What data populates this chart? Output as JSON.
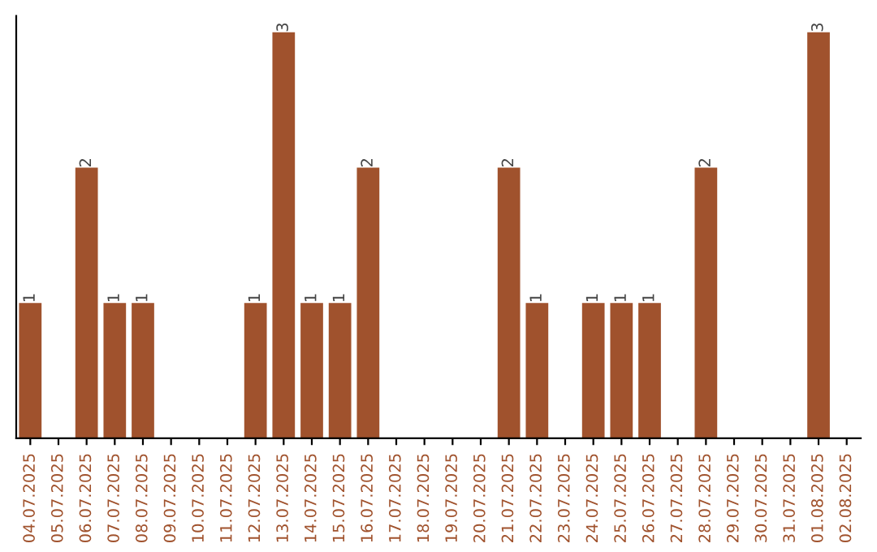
{
  "chart_data": {
    "type": "bar",
    "categories": [
      "04.07.2025",
      "05.07.2025",
      "06.07.2025",
      "07.07.2025",
      "08.07.2025",
      "09.07.2025",
      "10.07.2025",
      "11.07.2025",
      "12.07.2025",
      "13.07.2025",
      "14.07.2025",
      "15.07.2025",
      "16.07.2025",
      "17.07.2025",
      "18.07.2025",
      "19.07.2025",
      "20.07.2025",
      "21.07.2025",
      "22.07.2025",
      "23.07.2025",
      "24.07.2025",
      "25.07.2025",
      "26.07.2025",
      "27.07.2025",
      "28.07.2025",
      "29.07.2025",
      "30.07.2025",
      "31.07.2025",
      "01.08.2025",
      "02.08.2025"
    ],
    "values": [
      1,
      0,
      2,
      1,
      1,
      0,
      0,
      0,
      1,
      3,
      1,
      1,
      2,
      0,
      0,
      0,
      0,
      2,
      1,
      0,
      1,
      1,
      1,
      0,
      2,
      0,
      0,
      0,
      3,
      0
    ],
    "value_labels": [
      "1",
      null,
      "2",
      "1",
      "1",
      null,
      null,
      null,
      "1",
      "3",
      "1",
      "1",
      "2",
      null,
      null,
      null,
      null,
      "2",
      "1",
      null,
      "1",
      "1",
      "1",
      null,
      "2",
      null,
      null,
      null,
      "3",
      null
    ],
    "color": "#a0522d",
    "tick_labels": "x",
    "grid": false,
    "legend": false
  }
}
